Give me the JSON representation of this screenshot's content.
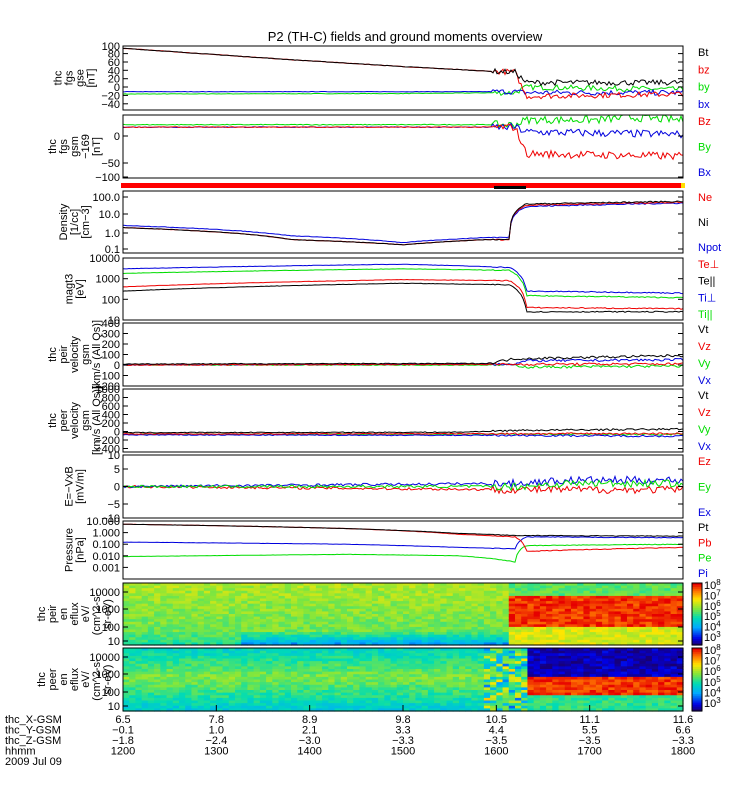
{
  "title": "P2 (TH-C) fields and ground moments overview",
  "colors": {
    "black": "#000000",
    "red": "#ee0000",
    "green": "#00dd00",
    "blue": "#0000dd",
    "status_bar": "#ff0000"
  },
  "chart_data": [
    {
      "type": "line",
      "id": "fgs_gse",
      "ylabel": [
        "thc",
        "fgs",
        "gse",
        "[nT]"
      ],
      "ylim": [
        -40,
        100
      ],
      "yticks": [
        "100",
        "80",
        "60",
        "40",
        "20",
        "0",
        "−20",
        "−40"
      ],
      "legend": [
        {
          "name": "Bt",
          "color": "#000000"
        },
        {
          "name": "bz",
          "color": "#ee0000"
        },
        {
          "name": "by",
          "color": "#00dd00"
        },
        {
          "name": "bx",
          "color": "#0000dd"
        }
      ]
    },
    {
      "type": "line",
      "id": "fgs_gsm",
      "ylabel": [
        "thc",
        "fgs",
        "gsm",
        "−169",
        "[nT]"
      ],
      "ylim": [
        -110,
        20
      ],
      "yticks": [
        "0",
        "−50",
        "−100"
      ],
      "legend": [
        {
          "name": "Bz",
          "color": "#ee0000"
        },
        {
          "name": "By",
          "color": "#00dd00"
        },
        {
          "name": "Bx",
          "color": "#0000dd"
        }
      ]
    },
    {
      "type": "line",
      "id": "density",
      "yscale": "log",
      "ylabel": [
        "Density",
        "[1/cc]",
        "[cm−3]"
      ],
      "ylim": [
        0.05,
        200
      ],
      "yticks": [
        "100.0",
        "10.0",
        "1.0",
        "0.1"
      ],
      "legend": [
        {
          "name": "Ne",
          "color": "#ee0000"
        },
        {
          "name": "Ni",
          "color": "#000000"
        },
        {
          "name": "Npot",
          "color": "#0000dd"
        }
      ]
    },
    {
      "type": "line",
      "id": "temperature",
      "yscale": "log",
      "ylabel": [
        "magt3",
        "[eV]"
      ],
      "ylim": [
        10,
        10000
      ],
      "yticks": [
        "10000",
        "1000",
        "100",
        "10"
      ],
      "legend": [
        {
          "name": "Te⊥",
          "color": "#ee0000"
        },
        {
          "name": "Te||",
          "color": "#000000"
        },
        {
          "name": "Ti⊥",
          "color": "#0000dd"
        },
        {
          "name": "Ti||",
          "color": "#00dd00"
        }
      ]
    },
    {
      "type": "line",
      "id": "peir_velocity",
      "ylabel": [
        "thc",
        "peir",
        "velocity",
        "gsm",
        "[km/s (All Qs)]"
      ],
      "ylim": [
        -200,
        400
      ],
      "yticks": [
        "400",
        "300",
        "200",
        "100",
        "0",
        "−100",
        "−200"
      ],
      "legend": [
        {
          "name": "Vt",
          "color": "#000000"
        },
        {
          "name": "Vz",
          "color": "#ee0000"
        },
        {
          "name": "Vy",
          "color": "#00dd00"
        },
        {
          "name": "Vx",
          "color": "#0000dd"
        }
      ]
    },
    {
      "type": "line",
      "id": "peer_velocity",
      "ylabel": [
        "thc",
        "peer",
        "velocity",
        "gsm",
        "[km/s (All Qs)]"
      ],
      "ylim": [
        -400,
        1000
      ],
      "yticks": [
        "1000",
        "800",
        "600",
        "400",
        "200",
        "0",
        "−200",
        "−400"
      ],
      "legend": [
        {
          "name": "Vt",
          "color": "#000000"
        },
        {
          "name": "Vz",
          "color": "#ee0000"
        },
        {
          "name": "Vy",
          "color": "#00dd00"
        },
        {
          "name": "Vx",
          "color": "#0000dd"
        }
      ]
    },
    {
      "type": "line",
      "id": "efield",
      "ylabel": [
        "E=−VxB",
        "[mV/m]"
      ],
      "ylim": [
        -10,
        10
      ],
      "yticks": [
        "10",
        "5",
        "0",
        "−5",
        "−10"
      ],
      "legend": [
        {
          "name": "Ez",
          "color": "#ee0000"
        },
        {
          "name": "Ey",
          "color": "#00dd00"
        },
        {
          "name": "Ex",
          "color": "#0000dd"
        }
      ]
    },
    {
      "type": "line",
      "id": "pressure",
      "yscale": "log",
      "ylabel": [
        "Pressure",
        "[nPa]"
      ],
      "ylim": [
        0.001,
        10
      ],
      "yticks": [
        "10.000",
        "1.000",
        "0.100",
        "0.010",
        "0.001"
      ],
      "legend": [
        {
          "name": "Pt",
          "color": "#000000"
        },
        {
          "name": "Pb",
          "color": "#ee0000"
        },
        {
          "name": "Pe",
          "color": "#00dd00"
        },
        {
          "name": "Pi",
          "color": "#0000dd"
        }
      ]
    },
    {
      "type": "heatmap",
      "id": "peir_eflux",
      "yscale": "log",
      "ylabel": [
        "thc",
        "peir",
        "en",
        "eflux",
        "eV/",
        "(cm^2-s-",
        "sr-eV)"
      ],
      "ylim": [
        5,
        20000
      ],
      "yticks": [
        "10000",
        "1000",
        "100",
        "10"
      ],
      "colorbar": {
        "min_exp": 3,
        "max_exp": 8,
        "labels": [
          "8",
          "7",
          "6",
          "5",
          "4",
          "3"
        ]
      }
    },
    {
      "type": "heatmap",
      "id": "peer_eflux",
      "yscale": "log",
      "ylabel": [
        "thc",
        "peer",
        "en",
        "eflux",
        "eV/",
        "(cm^2-s-",
        "sr-eV)"
      ],
      "ylim": [
        5,
        20000
      ],
      "yticks": [
        "10000",
        "1000",
        "100",
        "10"
      ],
      "colorbar": {
        "min_exp": 3,
        "max_exp": 8,
        "labels": [
          "8",
          "7",
          "6",
          "5",
          "4",
          "3"
        ]
      }
    }
  ],
  "x_axis": {
    "time_range": [
      "1200",
      "1800"
    ],
    "rows": [
      {
        "label": "thc_X-GSM",
        "values": [
          "6.5",
          "7.8",
          "8.9",
          "9.8",
          "10.5",
          "11.1",
          "11.6"
        ]
      },
      {
        "label": "thc_Y-GSM",
        "values": [
          "−0.1",
          "1.0",
          "2.1",
          "3.3",
          "4.4",
          "5.5",
          "6.6"
        ]
      },
      {
        "label": "thc_Z-GSM",
        "values": [
          "−1.8",
          "−2.4",
          "−3.0",
          "−3.3",
          "−3.5",
          "−3.5",
          "−3.3"
        ]
      },
      {
        "label": "hhmm",
        "values": [
          "1200",
          "1300",
          "1400",
          "1500",
          "1600",
          "1700",
          "1800"
        ]
      }
    ],
    "date": "2009 Jul 09"
  }
}
